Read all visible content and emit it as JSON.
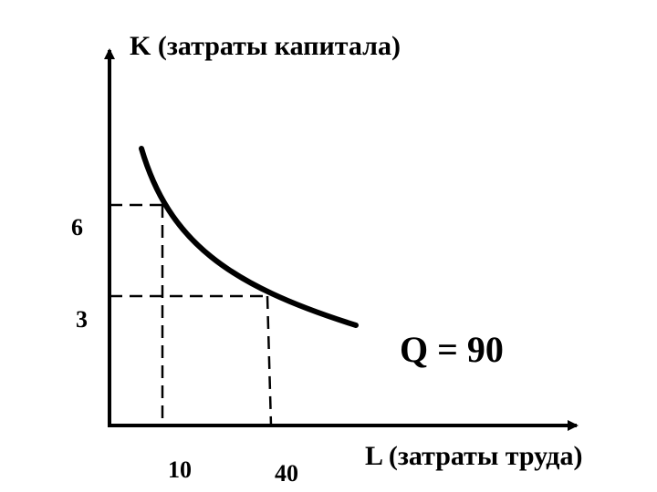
{
  "chart_data": {
    "type": "line",
    "title": "",
    "ylabel": "K (затраты капитала)",
    "xlabel": "L (затраты труда)",
    "curve_label": "Q = 90",
    "series": [
      {
        "name": "Q = 90",
        "points": [
          [
            10,
            6
          ],
          [
            40,
            3
          ]
        ]
      }
    ],
    "marked_points": [
      {
        "x": 10,
        "y": 6,
        "x_label": "10",
        "y_label": "6"
      },
      {
        "x": 40,
        "y": 3,
        "x_label": "40",
        "y_label": "3"
      }
    ],
    "colors": {
      "curve": "#000000",
      "axes": "#000000",
      "guides": "#000000"
    },
    "grid": false,
    "legend": "none"
  }
}
